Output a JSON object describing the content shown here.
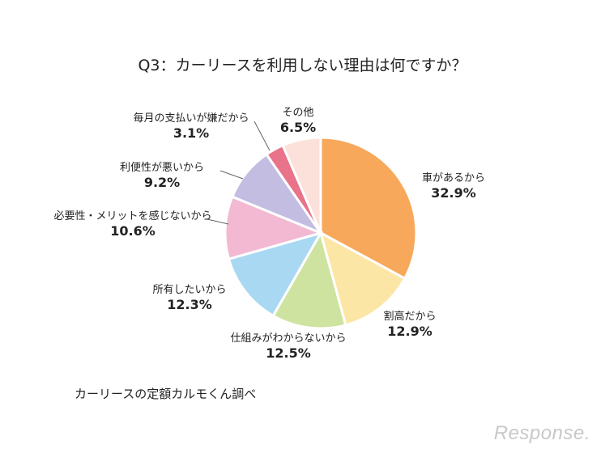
{
  "title": "Q3：カーリースを利用しない理由は何ですか？",
  "source": "カーリースの定額カルモくん調べ",
  "watermark": "Response.",
  "chart_data": {
    "type": "pie",
    "title": "Q3：カーリースを利用しない理由は何ですか？",
    "slices": [
      {
        "label": "車があるから",
        "value": 32.9,
        "value_label": "32.9%",
        "color": "#f7a85a"
      },
      {
        "label": "割高だから",
        "value": 12.9,
        "value_label": "12.9%",
        "color": "#fbe6a6"
      },
      {
        "label": "仕組みがわからないから",
        "value": 12.5,
        "value_label": "12.5%",
        "color": "#cfe3a0"
      },
      {
        "label": "所有したいから",
        "value": 12.3,
        "value_label": "12.3%",
        "color": "#a9d8f2"
      },
      {
        "label": "必要性・メリットを感じないから",
        "value": 10.6,
        "value_label": "10.6%",
        "color": "#f3b8d2"
      },
      {
        "label": "利便性が悪いから",
        "value": 9.2,
        "value_label": "9.2%",
        "color": "#c4bde2"
      },
      {
        "label": "毎月の支払いが嫌だから",
        "value": 3.1,
        "value_label": "3.1%",
        "color": "#e8738b"
      },
      {
        "label": "その他",
        "value": 6.5,
        "value_label": "6.5%",
        "color": "#fbe1da"
      }
    ]
  }
}
